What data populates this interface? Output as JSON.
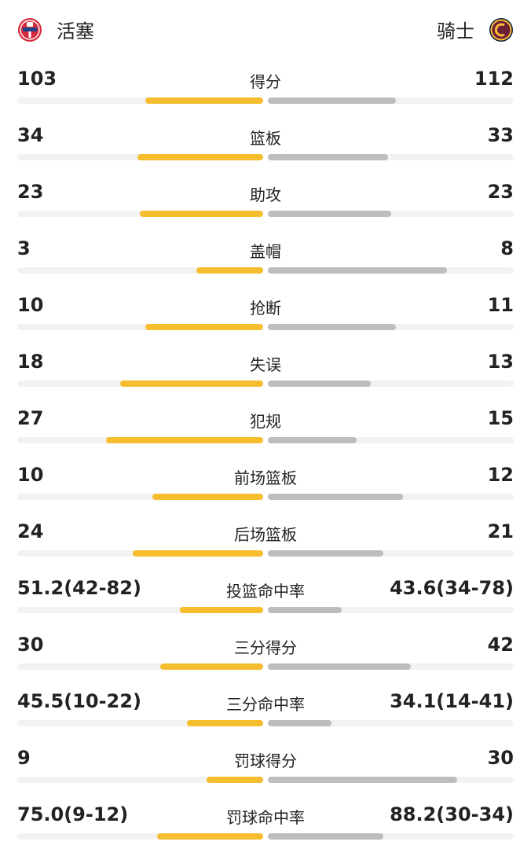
{
  "header": {
    "left_team": {
      "name": "活塞",
      "logo_icon": "pistons-logo-icon",
      "logo_color": "#d6293b"
    },
    "right_team": {
      "name": "骑士",
      "logo_icon": "cavaliers-logo-icon",
      "logo_color": "#6b2038"
    }
  },
  "colors": {
    "left_bar": "#f6bd2f",
    "right_bar": "#bdbdbd",
    "track": "#f2f2f2"
  },
  "stats": [
    {
      "label": "得分",
      "left": "103",
      "right": "112",
      "left_ratio": 0.48,
      "right_ratio": 0.52
    },
    {
      "label": "篮板",
      "left": "34",
      "right": "33",
      "left_ratio": 0.51,
      "right_ratio": 0.49
    },
    {
      "label": "助攻",
      "left": "23",
      "right": "23",
      "left_ratio": 0.5,
      "right_ratio": 0.5
    },
    {
      "label": "盖帽",
      "left": "3",
      "right": "8",
      "left_ratio": 0.27,
      "right_ratio": 0.73
    },
    {
      "label": "抢断",
      "left": "10",
      "right": "11",
      "left_ratio": 0.48,
      "right_ratio": 0.52
    },
    {
      "label": "失误",
      "left": "18",
      "right": "13",
      "left_ratio": 0.58,
      "right_ratio": 0.42
    },
    {
      "label": "犯规",
      "left": "27",
      "right": "15",
      "left_ratio": 0.64,
      "right_ratio": 0.36
    },
    {
      "label": "前场篮板",
      "left": "10",
      "right": "12",
      "left_ratio": 0.45,
      "right_ratio": 0.55
    },
    {
      "label": "后场篮板",
      "left": "24",
      "right": "21",
      "left_ratio": 0.53,
      "right_ratio": 0.47
    },
    {
      "label": "投篮命中率",
      "left": "51.2(42-82)",
      "right": "43.6(34-78)",
      "left_ratio": 0.34,
      "right_ratio": 0.3
    },
    {
      "label": "三分得分",
      "left": "30",
      "right": "42",
      "left_ratio": 0.42,
      "right_ratio": 0.58
    },
    {
      "label": "三分命中率",
      "left": "45.5(10-22)",
      "right": "34.1(14-41)",
      "left_ratio": 0.31,
      "right_ratio": 0.26
    },
    {
      "label": "罚球得分",
      "left": "9",
      "right": "30",
      "left_ratio": 0.23,
      "right_ratio": 0.77
    },
    {
      "label": "罚球命中率",
      "left": "75.0(9-12)",
      "right": "88.2(30-34)",
      "left_ratio": 0.43,
      "right_ratio": 0.47
    }
  ]
}
